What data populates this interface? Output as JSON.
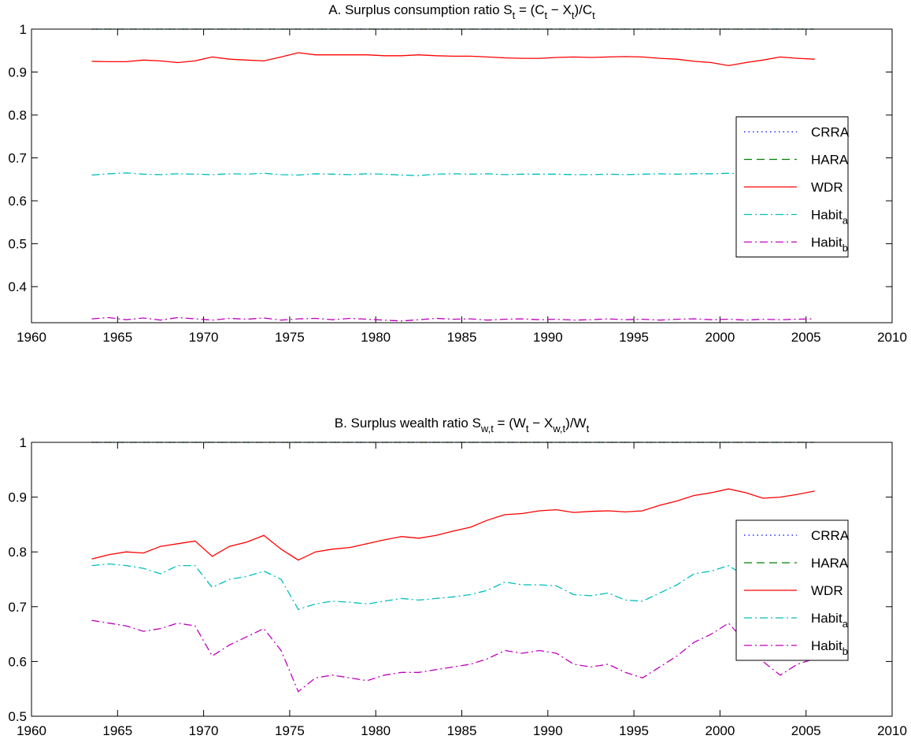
{
  "chart_data": [
    {
      "type": "line",
      "title": [
        "A. Surplus consumption ratio S",
        "t",
        " = (C",
        "t",
        " − X",
        "t",
        ")/C",
        "t"
      ],
      "x": [
        1963.5,
        1964.5,
        1965.5,
        1966.5,
        1967.5,
        1968.5,
        1969.5,
        1970.5,
        1971.5,
        1972.5,
        1973.5,
        1974.5,
        1975.5,
        1976.5,
        1977.5,
        1978.5,
        1979.5,
        1980.5,
        1981.5,
        1982.5,
        1983.5,
        1984.5,
        1985.5,
        1986.5,
        1987.5,
        1988.5,
        1989.5,
        1990.5,
        1991.5,
        1992.5,
        1993.5,
        1994.5,
        1995.5,
        1996.5,
        1997.5,
        1998.5,
        1999.5,
        2000.5,
        2001.5,
        2002.5,
        2003.5,
        2004.5,
        2005.5
      ],
      "xlim": [
        1960,
        2010
      ],
      "xticks": [
        1960,
        1965,
        1970,
        1975,
        1980,
        1985,
        1990,
        1995,
        2000,
        2005,
        2010
      ],
      "ylim": [
        0.316,
        1
      ],
      "yticks": [
        0.4,
        0.5,
        0.6,
        0.7,
        0.8,
        0.9,
        1
      ],
      "legend": "east",
      "series": [
        {
          "name": "CRRA",
          "color": "#0000ff",
          "style": "dotted",
          "values": [
            1,
            1,
            1,
            1,
            1,
            1,
            1,
            1,
            1,
            1,
            1,
            1,
            1,
            1,
            1,
            1,
            1,
            1,
            1,
            1,
            1,
            1,
            1,
            1,
            1,
            1,
            1,
            1,
            1,
            1,
            1,
            1,
            1,
            1,
            1,
            1,
            1,
            1,
            1,
            1,
            1,
            1,
            1
          ]
        },
        {
          "name": "HARA",
          "color": "#008000",
          "style": "dashed",
          "values": [
            1,
            1,
            1,
            1,
            1,
            1,
            1,
            1,
            1,
            1,
            1,
            1,
            1,
            1,
            1,
            1,
            1,
            1,
            1,
            1,
            1,
            1,
            1,
            1,
            1,
            1,
            1,
            1,
            1,
            1,
            1,
            1,
            1,
            1,
            1,
            1,
            1,
            1,
            1,
            1,
            1,
            1,
            1
          ]
        },
        {
          "name": "WDR",
          "color": "#ff0000",
          "style": "solid",
          "values": [
            0.925,
            0.924,
            0.924,
            0.928,
            0.926,
            0.922,
            0.926,
            0.935,
            0.93,
            0.928,
            0.926,
            0.935,
            0.945,
            0.94,
            0.94,
            0.94,
            0.94,
            0.938,
            0.938,
            0.94,
            0.938,
            0.937,
            0.937,
            0.935,
            0.933,
            0.932,
            0.932,
            0.934,
            0.935,
            0.934,
            0.935,
            0.936,
            0.935,
            0.932,
            0.93,
            0.925,
            0.922,
            0.915,
            0.922,
            0.928,
            0.935,
            0.932,
            0.93
          ]
        },
        {
          "name": [
            "Habit",
            "a"
          ],
          "color": "#00bfbf",
          "style": "dashdot",
          "values": [
            0.66,
            0.663,
            0.665,
            0.662,
            0.661,
            0.663,
            0.662,
            0.661,
            0.663,
            0.662,
            0.664,
            0.661,
            0.66,
            0.663,
            0.662,
            0.661,
            0.663,
            0.662,
            0.66,
            0.659,
            0.662,
            0.663,
            0.662,
            0.663,
            0.661,
            0.662,
            0.662,
            0.662,
            0.661,
            0.661,
            0.662,
            0.661,
            0.662,
            0.663,
            0.662,
            0.663,
            0.663,
            0.664,
            0.662,
            0.662,
            0.663,
            0.662,
            0.662
          ]
        },
        {
          "name": [
            "Habit",
            "b"
          ],
          "color": "#bf00bf",
          "style": "dashdot",
          "values": [
            0.325,
            0.328,
            0.323,
            0.327,
            0.322,
            0.328,
            0.325,
            0.322,
            0.326,
            0.324,
            0.327,
            0.322,
            0.325,
            0.326,
            0.323,
            0.326,
            0.324,
            0.322,
            0.32,
            0.323,
            0.326,
            0.324,
            0.325,
            0.322,
            0.324,
            0.325,
            0.323,
            0.324,
            0.322,
            0.323,
            0.325,
            0.323,
            0.324,
            0.322,
            0.324,
            0.325,
            0.323,
            0.324,
            0.322,
            0.324,
            0.323,
            0.324,
            0.325
          ]
        }
      ]
    },
    {
      "type": "line",
      "title": [
        "B. Surplus wealth ratio S",
        "w,t",
        " = (W",
        "t",
        " − X",
        "w,t",
        ")/W",
        "t"
      ],
      "x": [
        1963.5,
        1964.5,
        1965.5,
        1966.5,
        1967.5,
        1968.5,
        1969.5,
        1970.5,
        1971.5,
        1972.5,
        1973.5,
        1974.5,
        1975.5,
        1976.5,
        1977.5,
        1978.5,
        1979.5,
        1980.5,
        1981.5,
        1982.5,
        1983.5,
        1984.5,
        1985.5,
        1986.5,
        1987.5,
        1988.5,
        1989.5,
        1990.5,
        1991.5,
        1992.5,
        1993.5,
        1994.5,
        1995.5,
        1996.5,
        1997.5,
        1998.5,
        1999.5,
        2000.5,
        2001.5,
        2002.5,
        2003.5,
        2004.5,
        2005.5
      ],
      "xlim": [
        1960,
        2010
      ],
      "xticks": [
        1960,
        1965,
        1970,
        1975,
        1980,
        1985,
        1990,
        1995,
        2000,
        2005,
        2010
      ],
      "ylim": [
        0.5,
        1
      ],
      "yticks": [
        0.5,
        0.6,
        0.7,
        0.8,
        0.9,
        1
      ],
      "legend": "east",
      "series": [
        {
          "name": "CRRA",
          "color": "#0000ff",
          "style": "dotted",
          "values": [
            1,
            1,
            1,
            1,
            1,
            1,
            1,
            1,
            1,
            1,
            1,
            1,
            1,
            1,
            1,
            1,
            1,
            1,
            1,
            1,
            1,
            1,
            1,
            1,
            1,
            1,
            1,
            1,
            1,
            1,
            1,
            1,
            1,
            1,
            1,
            1,
            1,
            1,
            1,
            1,
            1,
            1,
            1
          ]
        },
        {
          "name": "HARA",
          "color": "#008000",
          "style": "dashed",
          "values": [
            1,
            1,
            1,
            1,
            1,
            1,
            1,
            1,
            1,
            1,
            1,
            1,
            1,
            1,
            1,
            1,
            1,
            1,
            1,
            1,
            1,
            1,
            1,
            1,
            1,
            1,
            1,
            1,
            1,
            1,
            1,
            1,
            1,
            1,
            1,
            1,
            1,
            1,
            1,
            1,
            1,
            1,
            1
          ]
        },
        {
          "name": "WDR",
          "color": "#ff0000",
          "style": "solid",
          "values": [
            0.787,
            0.795,
            0.8,
            0.798,
            0.81,
            0.815,
            0.82,
            0.792,
            0.81,
            0.818,
            0.83,
            0.805,
            0.785,
            0.8,
            0.805,
            0.808,
            0.815,
            0.822,
            0.828,
            0.825,
            0.83,
            0.838,
            0.845,
            0.858,
            0.868,
            0.87,
            0.875,
            0.877,
            0.872,
            0.874,
            0.875,
            0.873,
            0.875,
            0.885,
            0.893,
            0.903,
            0.908,
            0.915,
            0.908,
            0.898,
            0.9,
            0.905,
            0.911
          ]
        },
        {
          "name": [
            "Habit",
            "a"
          ],
          "color": "#00bfbf",
          "style": "dashdot",
          "values": [
            0.775,
            0.778,
            0.775,
            0.77,
            0.76,
            0.775,
            0.775,
            0.735,
            0.75,
            0.755,
            0.765,
            0.75,
            0.695,
            0.705,
            0.71,
            0.708,
            0.705,
            0.71,
            0.715,
            0.712,
            0.715,
            0.718,
            0.722,
            0.73,
            0.745,
            0.74,
            0.74,
            0.738,
            0.722,
            0.72,
            0.725,
            0.712,
            0.71,
            0.725,
            0.74,
            0.76,
            0.765,
            0.775,
            0.755,
            0.73,
            0.74,
            0.735,
            0.74
          ]
        },
        {
          "name": [
            "Habit",
            "b"
          ],
          "color": "#bf00bf",
          "style": "dashdot",
          "values": [
            0.675,
            0.67,
            0.665,
            0.655,
            0.66,
            0.67,
            0.665,
            0.61,
            0.63,
            0.645,
            0.66,
            0.62,
            0.545,
            0.57,
            0.575,
            0.57,
            0.565,
            0.575,
            0.58,
            0.58,
            0.585,
            0.59,
            0.595,
            0.605,
            0.62,
            0.615,
            0.62,
            0.615,
            0.595,
            0.59,
            0.595,
            0.58,
            0.57,
            0.59,
            0.61,
            0.635,
            0.65,
            0.67,
            0.635,
            0.6,
            0.575,
            0.595,
            0.605
          ]
        }
      ]
    }
  ]
}
